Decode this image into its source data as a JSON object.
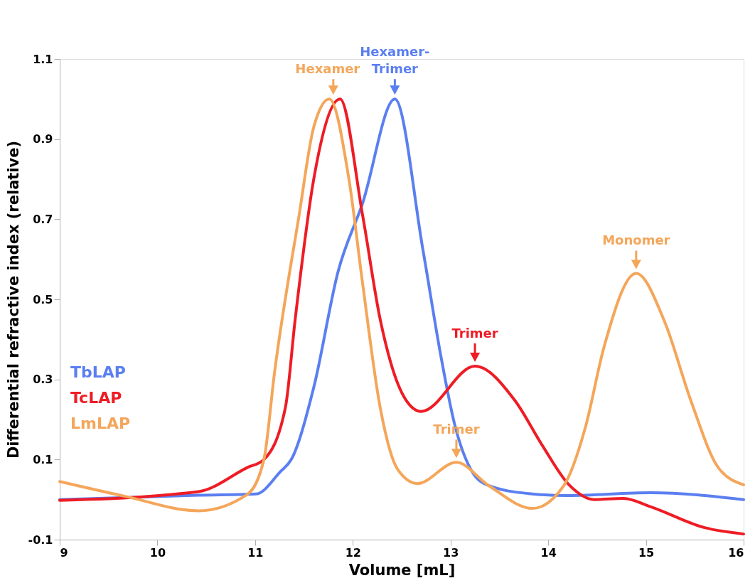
{
  "chart_data": {
    "type": "line",
    "xlabel": "Volume [mL]",
    "ylabel": "Differential refractive index (relative)",
    "xlim": [
      9,
      16
    ],
    "xticks": [
      9,
      10,
      11,
      12,
      13,
      14,
      15,
      16
    ],
    "ylim": [
      -0.1,
      1.1
    ],
    "yticks": [
      -0.1,
      0.1,
      0.3,
      0.5,
      0.7,
      0.9,
      1.1
    ],
    "grid": false,
    "legend": "bottom left",
    "marker": "none",
    "line_style": "solid",
    "series": [
      {
        "name": "TbLAP",
        "color": "#5b7ff0",
        "x": [
          9,
          10.42,
          11.01,
          11.26,
          11.37,
          11.6,
          11.85,
          12.1,
          12.43,
          12.72,
          12.9,
          13.04,
          13.22,
          13.39,
          13.8,
          14.2,
          15.05,
          16
        ],
        "values": [
          0.0,
          0.011,
          0.014,
          0.07,
          0.1,
          0.28,
          0.57,
          0.74,
          1.0,
          0.62,
          0.36,
          0.19,
          0.07,
          0.035,
          0.015,
          0.01,
          0.017,
          0.0
        ]
      },
      {
        "name": "TcLAP",
        "color": "#ee1c25",
        "x": [
          9,
          10.42,
          10.92,
          11.09,
          11.31,
          11.41,
          11.6,
          11.87,
          12.1,
          12.28,
          12.54,
          12.7,
          13.25,
          13.66,
          13.94,
          14.22,
          14.47,
          14.77,
          15.05,
          15.6,
          16
        ],
        "values": [
          -0.002,
          0.02,
          0.08,
          0.1,
          0.23,
          0.45,
          0.8,
          1.0,
          0.71,
          0.45,
          0.25,
          0.22,
          0.333,
          0.247,
          0.135,
          0.035,
          0.0,
          0.003,
          -0.018,
          -0.07,
          -0.086
        ]
      },
      {
        "name": "LmLAP",
        "color": "#f4a65a",
        "x": [
          9,
          9.67,
          10.42,
          10.92,
          11.09,
          11.2,
          11.45,
          11.6,
          11.76,
          11.96,
          12.1,
          12.28,
          12.46,
          12.66,
          13.06,
          13.39,
          13.84,
          14.16,
          14.38,
          14.57,
          14.9,
          15.19,
          15.46,
          15.74,
          16
        ],
        "values": [
          0.045,
          0.008,
          -0.028,
          0.013,
          0.1,
          0.32,
          0.71,
          0.93,
          1.0,
          0.8,
          0.54,
          0.23,
          0.075,
          0.04,
          0.093,
          0.035,
          -0.022,
          0.035,
          0.18,
          0.38,
          0.565,
          0.445,
          0.247,
          0.08,
          0.037
        ]
      }
    ],
    "annotations": [
      {
        "text": "Hexamer",
        "x": 11.8,
        "y": 1.0
      },
      {
        "text": "Hexamer-Trimer",
        "x": 12.43,
        "y": 1.0
      },
      {
        "text": "Trimer",
        "x": 13.06,
        "y": 0.093
      },
      {
        "text": "Trimer",
        "x": 13.25,
        "y": 0.333
      },
      {
        "text": "Monomer",
        "x": 14.9,
        "y": 0.565
      }
    ]
  }
}
